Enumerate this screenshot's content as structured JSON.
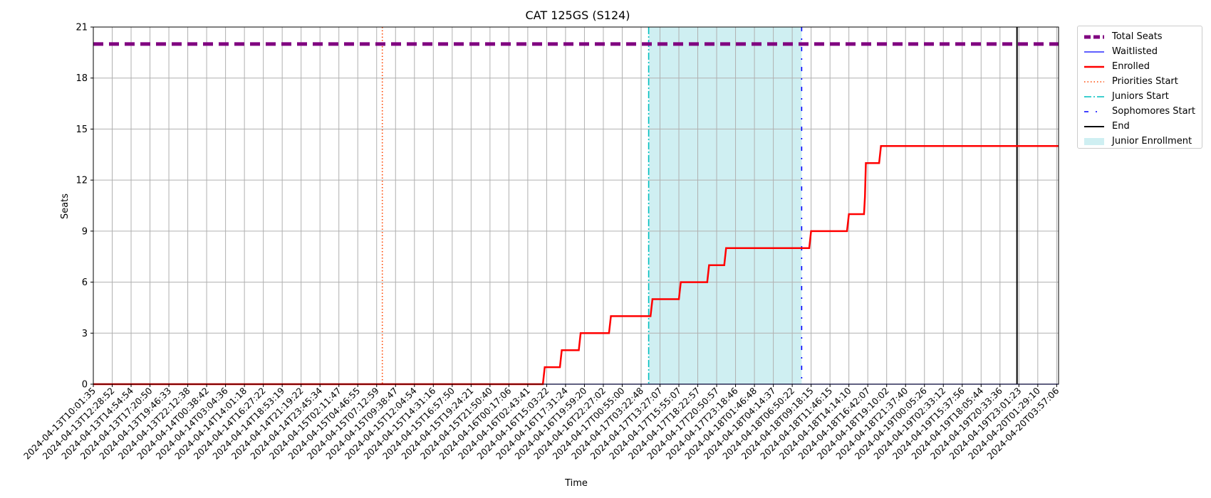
{
  "chart_data": {
    "type": "line",
    "title": "CAT 125GS (S124)",
    "xlabel": "Time",
    "ylabel": "Seats",
    "ylim": [
      0,
      21
    ],
    "yticks": [
      0,
      3,
      6,
      9,
      12,
      15,
      18,
      21
    ],
    "grid": true,
    "legend_position": "outside-top-right",
    "x_tick_labels": [
      "2024-04-13T10:01:35",
      "2024-04-13T12:28:52",
      "2024-04-13T14:54:54",
      "2024-04-13T17:20:50",
      "2024-04-13T19:46:33",
      "2024-04-13T22:12:38",
      "2024-04-14T00:38:42",
      "2024-04-14T03:04:36",
      "2024-04-14T14:01:18",
      "2024-04-14T16:27:22",
      "2024-04-14T18:53:19",
      "2024-04-14T21:19:22",
      "2024-04-14T23:45:34",
      "2024-04-15T02:11:47",
      "2024-04-15T04:46:55",
      "2024-04-15T07:12:59",
      "2024-04-15T09:38:47",
      "2024-04-15T12:04:54",
      "2024-04-15T14:31:16",
      "2024-04-15T16:57:50",
      "2024-04-15T19:24:21",
      "2024-04-15T21:50:40",
      "2024-04-16T00:17:06",
      "2024-04-16T02:43:41",
      "2024-04-16T15:03:22",
      "2024-04-16T17:31:24",
      "2024-04-16T19:59:20",
      "2024-04-16T22:27:02",
      "2024-04-17T00:55:00",
      "2024-04-17T03:22:48",
      "2024-04-17T13:27:07",
      "2024-04-17T15:55:07",
      "2024-04-17T18:22:57",
      "2024-04-17T20:50:57",
      "2024-04-17T23:18:46",
      "2024-04-18T01:46:48",
      "2024-04-18T04:14:37",
      "2024-04-18T06:50:22",
      "2024-04-18T09:18:15",
      "2024-04-18T11:46:15",
      "2024-04-18T14:14:10",
      "2024-04-18T16:42:07",
      "2024-04-18T19:10:02",
      "2024-04-18T21:37:40",
      "2024-04-19T00:05:26",
      "2024-04-19T02:33:12",
      "2024-04-19T15:37:56",
      "2024-04-19T18:05:44",
      "2024-04-19T20:33:36",
      "2024-04-19T23:01:23",
      "2024-04-20T01:29:10",
      "2024-04-20T03:57:06"
    ],
    "x_range_ticks": [
      0,
      51.1
    ],
    "series": [
      {
        "name": "Total Seats",
        "color": "#800080",
        "style": "dashed",
        "points": [
          [
            0,
            20
          ],
          [
            51.1,
            20
          ]
        ]
      },
      {
        "name": "Waitlisted",
        "color": "#0000ff",
        "style": "solid",
        "points": [
          [
            0,
            0
          ],
          [
            51.1,
            0
          ]
        ]
      },
      {
        "name": "Enrolled",
        "color": "#ff0000",
        "style": "solid",
        "points": [
          [
            0,
            0
          ],
          [
            23.8,
            0
          ],
          [
            23.9,
            1
          ],
          [
            24.7,
            1
          ],
          [
            24.8,
            2
          ],
          [
            25.7,
            2
          ],
          [
            25.8,
            3
          ],
          [
            27.3,
            3
          ],
          [
            27.4,
            4
          ],
          [
            29.5,
            4
          ],
          [
            29.6,
            5
          ],
          [
            31.0,
            5
          ],
          [
            31.1,
            6
          ],
          [
            32.5,
            6
          ],
          [
            32.6,
            7
          ],
          [
            33.4,
            7
          ],
          [
            33.5,
            8
          ],
          [
            37.9,
            8
          ],
          [
            38.0,
            9
          ],
          [
            39.9,
            9
          ],
          [
            40.0,
            10
          ],
          [
            40.8,
            10
          ],
          [
            40.85,
            11
          ],
          [
            40.9,
            13
          ],
          [
            41.6,
            13
          ],
          [
            41.7,
            14
          ],
          [
            51.1,
            14
          ]
        ]
      }
    ],
    "markers": [
      {
        "name": "Priorities Start",
        "color": "#ff4500",
        "style": "dotted",
        "x": 15.3
      },
      {
        "name": "Juniors Start",
        "color": "#00bfbf",
        "style": "dashdot",
        "x": 29.4
      },
      {
        "name": "Sophomores Start",
        "color": "#0000ff",
        "style": "loosely-dashdot",
        "x": 37.5
      },
      {
        "name": "End",
        "color": "#000000",
        "style": "solid",
        "x": 48.9
      }
    ],
    "shaded_regions": [
      {
        "name": "Junior Enrollment",
        "color": "#afe5ea",
        "x_start": 29.4,
        "x_end": 37.5
      }
    ]
  }
}
